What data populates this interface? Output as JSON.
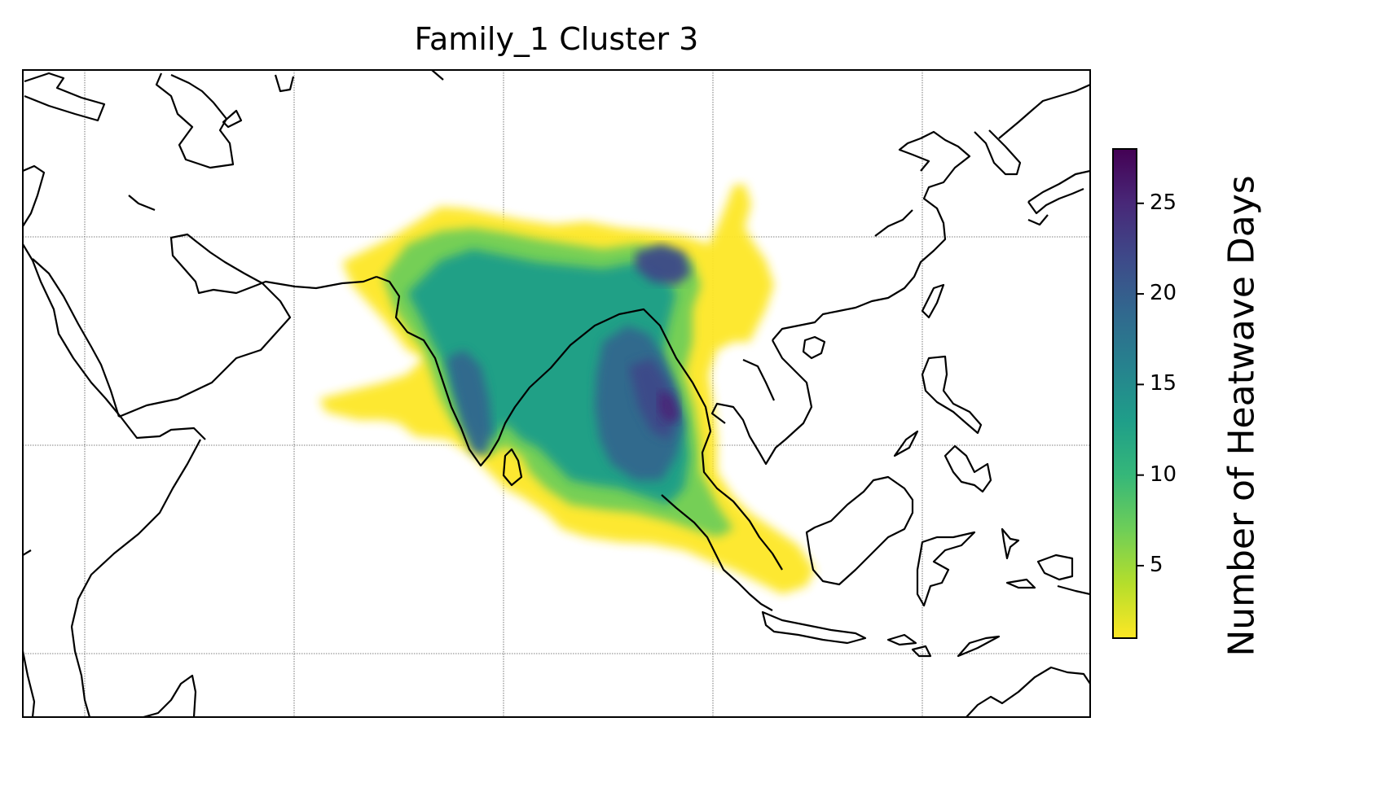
{
  "title": "Family_1 Cluster 3",
  "colorbar": {
    "label": "Number of Heatwave Days",
    "colormap": "viridis_r",
    "range": [
      1,
      28
    ],
    "ticks": [
      5,
      10,
      15,
      20,
      25
    ],
    "tick_labels": [
      "5",
      "10",
      "15",
      "20",
      "25"
    ],
    "colors": [
      "#fde725",
      "#b5de2b",
      "#6ece58",
      "#35b779",
      "#1f9e89",
      "#26828e",
      "#31688e",
      "#3e4989",
      "#482878",
      "#440154"
    ]
  },
  "map": {
    "region": "South and Southeast Asia",
    "gridlines": true,
    "coastlines": true
  },
  "chart_data": {
    "type": "heatmap",
    "title": "Family_1 Cluster 3",
    "zlabel": "Number of Heatwave Days",
    "zlim": [
      1,
      28
    ],
    "ticks": [
      5,
      10,
      15,
      20,
      25
    ]
  }
}
